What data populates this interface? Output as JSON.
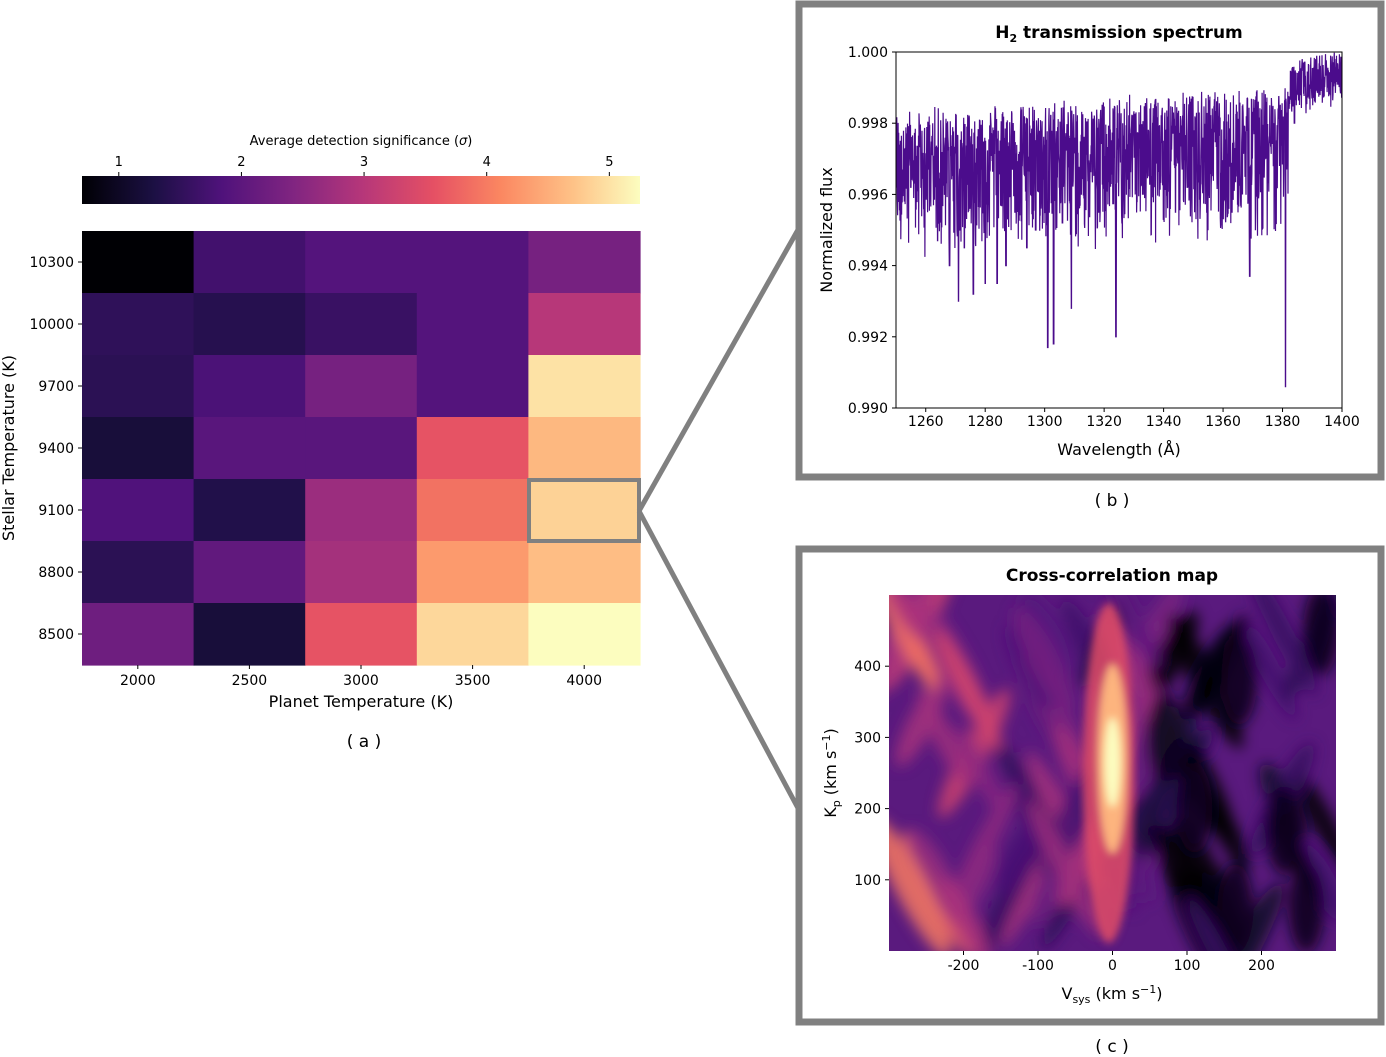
{
  "panel_labels": {
    "a": "( a )",
    "b": "( b )",
    "c": "( c )"
  },
  "colorbar": {
    "label": "Average detection significance (",
    "label_symbol": "σ",
    "label_close": ")",
    "ticks": [
      "1",
      "2",
      "3",
      "4",
      "5"
    ],
    "range": [
      0.7,
      5.25
    ]
  },
  "chart_data": [
    {
      "type": "heatmap",
      "title": "",
      "xlabel": "Planet Temperature (K)",
      "ylabel": "Stellar Temperature (K)",
      "x": [
        "2000",
        "2500",
        "3000",
        "3500",
        "4000"
      ],
      "y": [
        "10300",
        "10000",
        "9700",
        "9400",
        "9100",
        "8800",
        "8500"
      ],
      "values": [
        [
          0.7,
          1.7,
          1.9,
          1.9,
          2.3
        ],
        [
          1.5,
          1.4,
          1.6,
          1.9,
          3.0
        ],
        [
          1.45,
          1.8,
          2.3,
          1.9,
          5.0
        ],
        [
          1.2,
          1.95,
          1.95,
          3.6,
          4.6
        ],
        [
          1.85,
          1.35,
          2.7,
          3.9,
          4.85
        ],
        [
          1.45,
          2.05,
          2.8,
          4.3,
          4.65
        ],
        [
          2.2,
          1.2,
          3.6,
          4.9,
          5.25
        ]
      ],
      "highlight": {
        "x": "4000",
        "y": "9100"
      }
    },
    {
      "type": "line",
      "title_main": "H",
      "title_sub": "2",
      "title_rest": " transmission spectrum",
      "xlabel": "Wavelength (Å)",
      "ylabel": "Normalized flux",
      "xlim": [
        1250,
        1400
      ],
      "ylim": [
        0.99,
        1.0
      ],
      "xticks": [
        "1260",
        "1280",
        "1300",
        "1320",
        "1340",
        "1360",
        "1380",
        "1400"
      ],
      "yticks": [
        "0.990",
        "0.992",
        "0.994",
        "0.996",
        "0.998",
        "1.000"
      ],
      "series": [
        {
          "name": "H2",
          "color": "#4b0c8c"
        }
      ],
      "absorption_lines": [
        [
          1252,
          0.9967
        ],
        [
          1255,
          0.9962
        ],
        [
          1257,
          0.9958
        ],
        [
          1260,
          0.9962
        ],
        [
          1264,
          0.9947
        ],
        [
          1268,
          0.994
        ],
        [
          1271,
          0.993
        ],
        [
          1273,
          0.9945
        ],
        [
          1276,
          0.9932
        ],
        [
          1280,
          0.9935
        ],
        [
          1284,
          0.9935
        ],
        [
          1287,
          0.994
        ],
        [
          1290,
          0.9955
        ],
        [
          1294,
          0.9945
        ],
        [
          1297,
          0.995
        ],
        [
          1301,
          0.9917
        ],
        [
          1303,
          0.9918
        ],
        [
          1306,
          0.9952
        ],
        [
          1309,
          0.9928
        ],
        [
          1313,
          0.9965
        ],
        [
          1318,
          0.9955
        ],
        [
          1321,
          0.9962
        ],
        [
          1324,
          0.992
        ],
        [
          1327,
          0.9967
        ],
        [
          1331,
          0.9958
        ],
        [
          1336,
          0.9965
        ],
        [
          1340,
          0.9953
        ],
        [
          1344,
          0.9955
        ],
        [
          1348,
          0.9962
        ],
        [
          1353,
          0.9963
        ],
        [
          1358,
          0.9966
        ],
        [
          1363,
          0.9955
        ],
        [
          1366,
          0.9957
        ],
        [
          1369,
          0.9937
        ],
        [
          1374,
          0.997
        ],
        [
          1378,
          0.9975
        ],
        [
          1381,
          0.9906
        ],
        [
          1384,
          0.998
        ],
        [
          1389,
          0.9987
        ],
        [
          1394,
          0.9993
        ]
      ]
    },
    {
      "type": "heatmap",
      "title": "Cross-correlation map",
      "xlabel_main": "V",
      "xlabel_sub": "sys",
      "xlabel_rest": " (km s",
      "xlabel_sup": "−1",
      "xlabel_close": ")",
      "ylabel_main": "K",
      "ylabel_sub": "p",
      "ylabel_rest": " (km s",
      "ylabel_sup": "−1",
      "ylabel_close": ")",
      "xlim": [
        -300,
        300
      ],
      "ylim": [
        0,
        500
      ],
      "xticks": [
        "-200",
        "-100",
        "0",
        "100",
        "200"
      ],
      "yticks": [
        "100",
        "200",
        "300",
        "400"
      ],
      "peak": {
        "vsys": 0,
        "kp": 250
      }
    }
  ]
}
